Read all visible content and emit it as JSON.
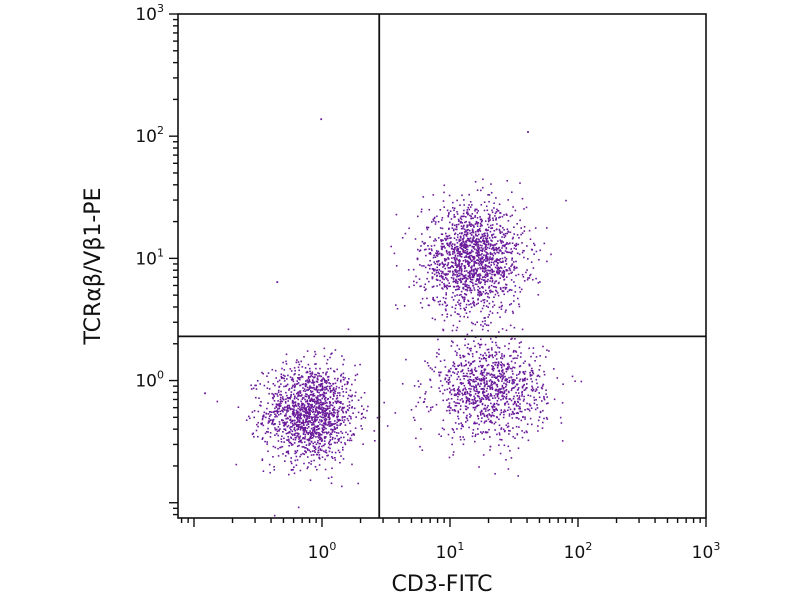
{
  "chart_data": {
    "type": "scatter",
    "title": "",
    "xlabel": "CD3-FITC",
    "ylabel": "TCRαβ/Vβ1-PE",
    "x_scale": "log",
    "y_scale": "log",
    "xlim": [
      0.075,
      1000
    ],
    "ylim": [
      0.075,
      1000
    ],
    "grid": false,
    "legend": "none",
    "point_color": "#6a1b9a",
    "x_ticks": [
      {
        "base": "10",
        "exp": "0",
        "value": 1
      },
      {
        "base": "10",
        "exp": "1",
        "value": 10
      },
      {
        "base": "10",
        "exp": "2",
        "value": 100
      },
      {
        "base": "10",
        "exp": "3",
        "value": 1000
      }
    ],
    "y_ticks": [
      {
        "base": "10",
        "exp": "0",
        "value": 1
      },
      {
        "base": "10",
        "exp": "1",
        "value": 10
      },
      {
        "base": "10",
        "exp": "2",
        "value": 100
      },
      {
        "base": "10",
        "exp": "3",
        "value": 1000
      }
    ],
    "quadrant_gates": {
      "x": 2.8,
      "y": 2.3
    },
    "populations": [
      {
        "name": "CD3-negative / TCR-negative",
        "center_x": 0.8,
        "center_y": 0.55,
        "spread_log_x": 0.18,
        "spread_log_y": 0.2,
        "count": 1500
      },
      {
        "name": "CD3-positive / TCRαβ-Vβ1-positive",
        "center_x": 15,
        "center_y": 10,
        "spread_log_x": 0.2,
        "spread_log_y": 0.22,
        "count": 1600
      },
      {
        "name": "CD3-positive / TCR-negative",
        "center_x": 20,
        "center_y": 0.85,
        "spread_log_x": 0.22,
        "spread_log_y": 0.2,
        "count": 1100
      }
    ],
    "outliers": [
      {
        "x": 0.97,
        "y": 140
      },
      {
        "x": 0.44,
        "y": 6.5
      },
      {
        "x": 40,
        "y": 110
      },
      {
        "x": 0.12,
        "y": 0.8
      }
    ]
  }
}
